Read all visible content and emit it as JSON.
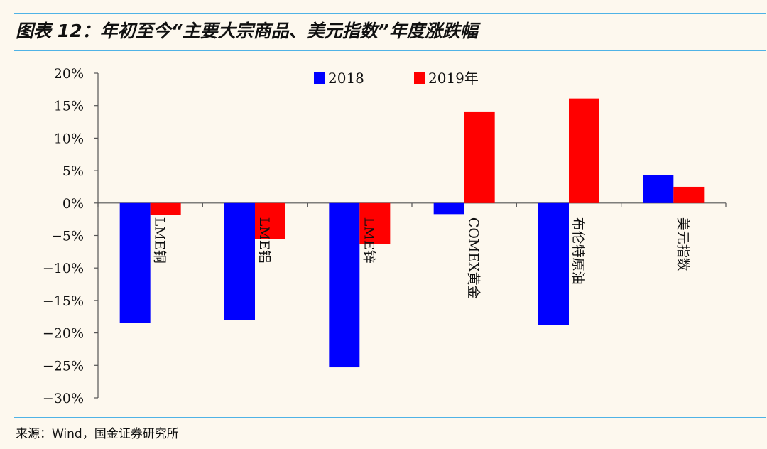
{
  "figure": {
    "title": "图表 12：年初至今“主要大宗商品、美元指数”年度涨跌幅",
    "source": "来源：Wind，国金证券研究所"
  },
  "colors": {
    "series_2018": "#0000ff",
    "series_2019": "#ff0000",
    "rule": "#4fb3e6",
    "background": "#fdf8ee"
  },
  "chart_data": {
    "type": "bar",
    "title": "年初至今“主要大宗商品、美元指数”年度涨跌幅",
    "categories": [
      "LME铜",
      "LME铝",
      "LME锌",
      "COMEX黄金",
      "布伦特原油",
      "美元指数"
    ],
    "series": [
      {
        "name": "2018",
        "values": [
          -18.5,
          -18.0,
          -25.3,
          -1.7,
          -18.8,
          4.3
        ]
      },
      {
        "name": "2019年",
        "values": [
          -1.8,
          -5.6,
          -6.3,
          14.1,
          16.1,
          2.5
        ]
      }
    ],
    "y_ticks": [
      "20%",
      "15%",
      "10%",
      "5%",
      "0%",
      "-5%",
      "-10%",
      "-15%",
      "-20%",
      "-25%",
      "-30%"
    ],
    "ylim": [
      -30,
      20
    ],
    "xlabel": "",
    "ylabel": "",
    "legend_position": "top-center",
    "grid": false
  }
}
